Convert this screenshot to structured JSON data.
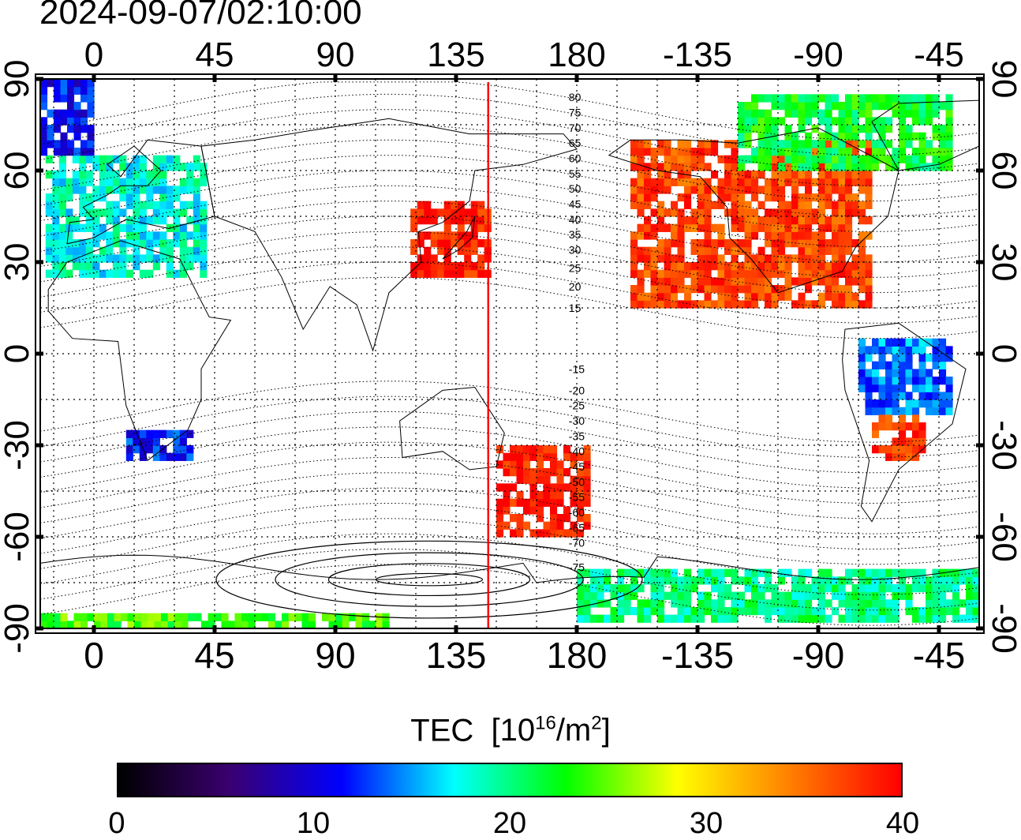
{
  "timestamp": "2024-09-07/02:10:00",
  "lon_ticks": [
    "0",
    "45",
    "90",
    "135",
    "180",
    "-135",
    "-90",
    "-45"
  ],
  "lat_ticks": [
    "90",
    "60",
    "30",
    "0",
    "-30",
    "-60",
    "-90"
  ],
  "contour_labels": [
    "80",
    "75",
    "70",
    "65",
    "60",
    "55",
    "50",
    "45",
    "40",
    "35",
    "30",
    "25",
    "20",
    "15",
    "-15",
    "-20",
    "-25",
    "-30",
    "-35",
    "-40",
    "-45",
    "-50",
    "-55",
    "-60",
    "-65",
    "-70",
    "-75"
  ],
  "colorbar": {
    "title": "TEC",
    "unit_base": "[10",
    "unit_exp": "16",
    "unit_mid": "/m",
    "unit_exp2": "2",
    "unit_end": "]",
    "min": 0,
    "max": 40,
    "tick_labels": [
      "0",
      "10",
      "20",
      "30",
      "40"
    ],
    "colors": [
      "#000000",
      "#3a0070",
      "#0000ff",
      "#00ffff",
      "#00ff00",
      "#ffff00",
      "#ff8000",
      "#ff0000"
    ]
  },
  "map": {
    "lon_min": -20,
    "lon_max": 330,
    "lat_min": -90,
    "lat_max": 90,
    "sun_meridian_lon": 147,
    "sun_meridian_color": "#ff0000"
  },
  "tec_regions": [
    {
      "name": "europe",
      "lon": [
        -18,
        40
      ],
      "lat": [
        25,
        65
      ],
      "tec": 18
    },
    {
      "name": "north-atlantic",
      "lon": [
        -20,
        0
      ],
      "lat": [
        65,
        90
      ],
      "tec": 11
    },
    {
      "name": "south-africa",
      "lon": [
        12,
        35
      ],
      "lat": [
        -35,
        -25
      ],
      "tec": 12
    },
    {
      "name": "east-asia",
      "lon": [
        118,
        148
      ],
      "lat": [
        25,
        50
      ],
      "tec": 39
    },
    {
      "name": "oceania",
      "lon": [
        150,
        185
      ],
      "lat": [
        -60,
        -30
      ],
      "tec": 39
    },
    {
      "name": "north-america",
      "lon": [
        200,
        290
      ],
      "lat": [
        15,
        70
      ],
      "tec": 37
    },
    {
      "name": "canada-arctic",
      "lon": [
        240,
        320
      ],
      "lat": [
        60,
        85
      ],
      "tec": 22
    },
    {
      "name": "south-america-north",
      "lon": [
        285,
        320
      ],
      "lat": [
        -20,
        5
      ],
      "tec": 14
    },
    {
      "name": "south-america-mid",
      "lon": [
        290,
        310
      ],
      "lat": [
        -35,
        -20
      ],
      "tec": 38
    },
    {
      "name": "antarctica-coast",
      "lon": [
        180,
        330
      ],
      "lat": [
        -88,
        -72
      ],
      "tec": 20
    },
    {
      "name": "antarctica-south",
      "lon": [
        -20,
        110
      ],
      "lat": [
        -90,
        -87
      ],
      "tec": 24
    }
  ]
}
